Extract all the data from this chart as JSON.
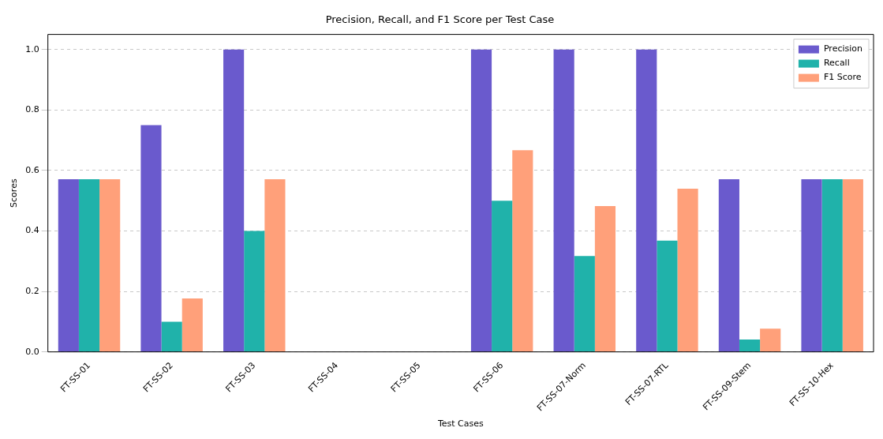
{
  "chart_data": {
    "type": "bar",
    "title": "Precision, Recall, and F1 Score per Test Case",
    "xlabel": "Test Cases",
    "ylabel": "Scores",
    "categories": [
      "FT-SS-01",
      "FT-SS-02",
      "FT-SS-03",
      "FT-SS-04",
      "FT-SS-05",
      "FT-SS-06",
      "FT-SS-07-Norm",
      "FT-SS-07-RTL",
      "FT-SS-09-Stem",
      "FT-SS-10-Hex"
    ],
    "series": [
      {
        "name": "Precision",
        "color": "#6a5acd",
        "values": [
          0.571,
          0.75,
          1.0,
          0,
          0,
          1.0,
          1.0,
          1.0,
          0.571,
          0.571
        ]
      },
      {
        "name": "Recall",
        "color": "#20b2aa",
        "values": [
          0.571,
          0.1,
          0.4,
          0,
          0,
          0.5,
          0.317,
          0.368,
          0.041,
          0.571
        ]
      },
      {
        "name": "F1 Score",
        "color": "#ffa07a",
        "values": [
          0.571,
          0.177,
          0.571,
          0,
          0,
          0.667,
          0.482,
          0.54,
          0.077,
          0.571
        ]
      }
    ],
    "ylim": [
      0,
      1.05
    ],
    "yticks": [
      {
        "value": 0,
        "label": "0.0"
      },
      0.2,
      0.4,
      0.6,
      0.8,
      {
        "value": 1,
        "label": "1.0"
      }
    ],
    "grid": "y",
    "legend": "top right"
  }
}
